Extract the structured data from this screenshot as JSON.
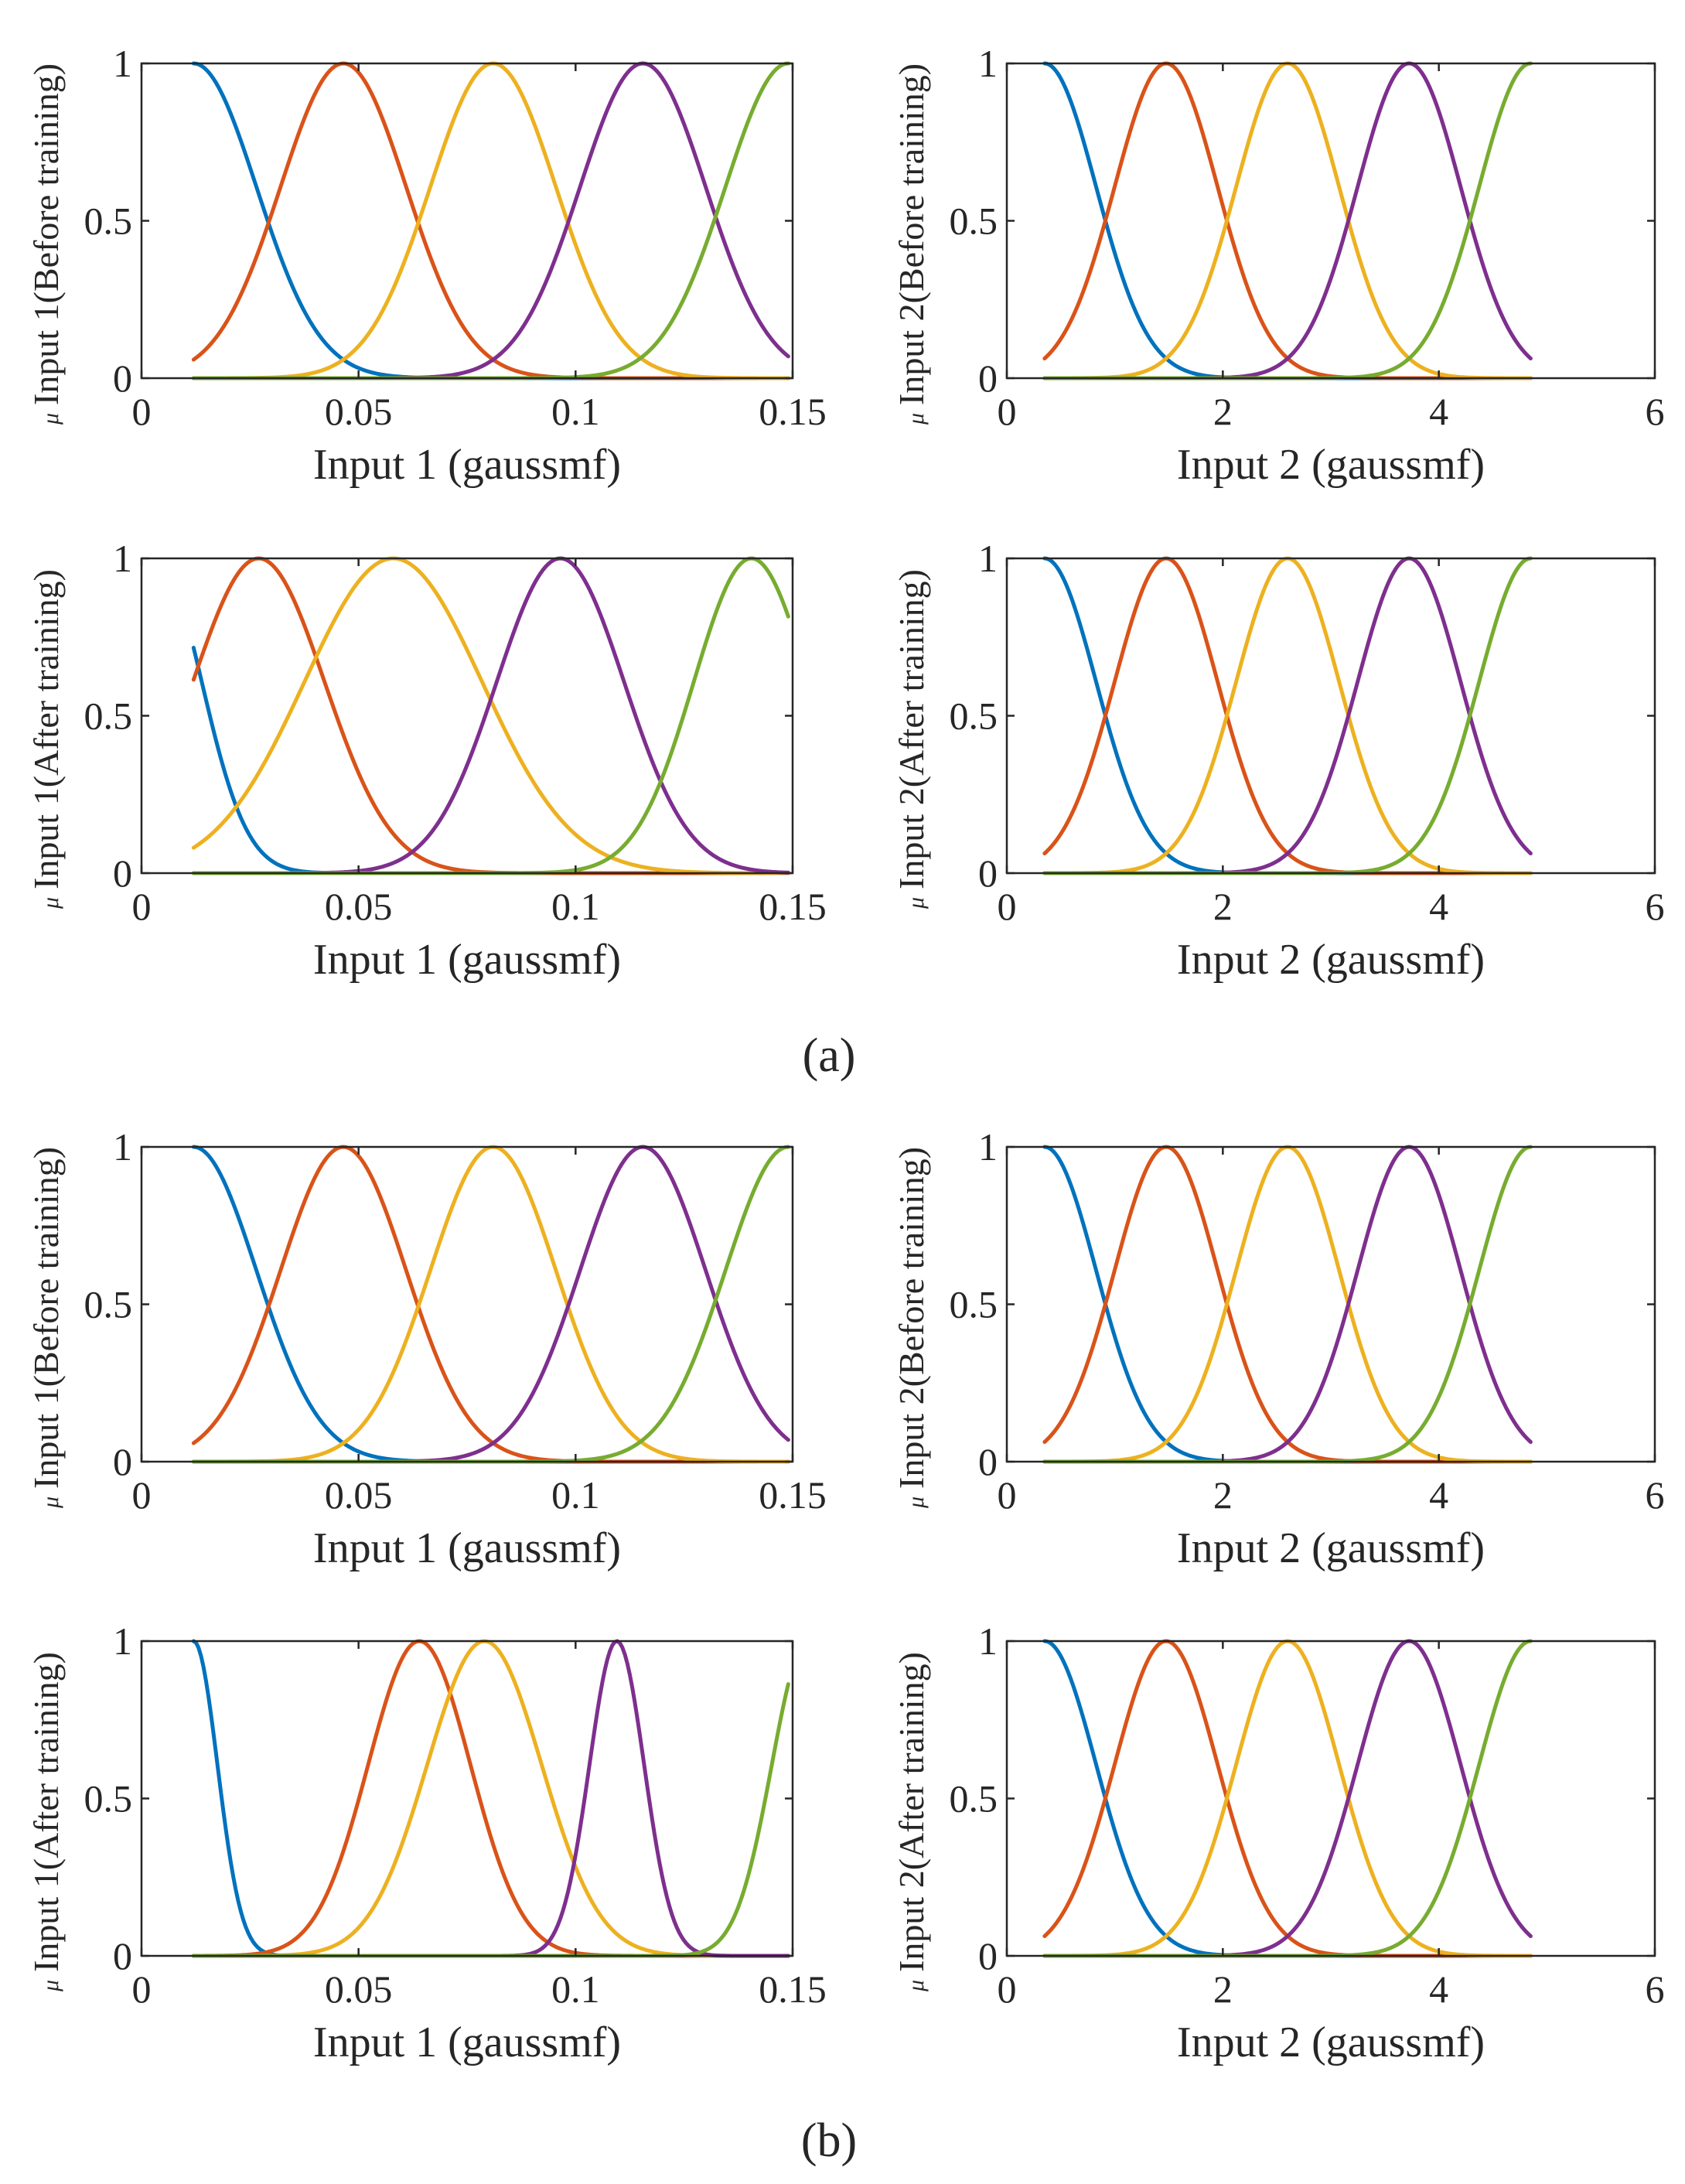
{
  "figure": {
    "panel_labels": [
      {
        "group": "a",
        "text": "(a)"
      },
      {
        "group": "b",
        "text": "(b)"
      }
    ]
  },
  "chart_data": [
    {
      "id": "a-input1-before",
      "type": "line",
      "xlabel": "Input 1 (gaussmf)",
      "ylabel_mu": "μ",
      "ylabel": "Input 1(Before training)",
      "xlim": [
        0,
        0.15
      ],
      "ylim": [
        0,
        1
      ],
      "xticks": [
        0,
        0.05,
        0.1,
        0.15
      ],
      "xtick_labels": [
        "0",
        "0.05",
        "0.1",
        "0.15"
      ],
      "yticks": [
        0,
        0.5,
        1
      ],
      "ytick_labels": [
        "0",
        "0.5",
        "1"
      ],
      "domain": [
        0.012,
        0.149
      ],
      "series": [
        {
          "name": "mf1",
          "color": "#0072BD",
          "center": 0.012,
          "sigma": 0.0145
        },
        {
          "name": "mf2",
          "color": "#D95319",
          "center": 0.0465,
          "sigma": 0.0145
        },
        {
          "name": "mf3",
          "color": "#EDB120",
          "center": 0.081,
          "sigma": 0.0145
        },
        {
          "name": "mf4",
          "color": "#7E2F8E",
          "center": 0.1155,
          "sigma": 0.0145
        },
        {
          "name": "mf5",
          "color": "#77AC30",
          "center": 0.149,
          "sigma": 0.0145
        }
      ]
    },
    {
      "id": "a-input2-before",
      "type": "line",
      "xlabel": "Input 2 (gaussmf)",
      "ylabel_mu": "μ",
      "ylabel": "Input 2(Before training)",
      "xlim": [
        0,
        6
      ],
      "ylim": [
        0,
        1
      ],
      "xticks": [
        0,
        2,
        4,
        6
      ],
      "xtick_labels": [
        "0",
        "2",
        "4",
        "6"
      ],
      "yticks": [
        0,
        0.5,
        1
      ],
      "ytick_labels": [
        "0",
        "0.5",
        "1"
      ],
      "domain": [
        0.35,
        4.85
      ],
      "series": [
        {
          "name": "mf1",
          "color": "#0072BD",
          "center": 0.35,
          "sigma": 0.478
        },
        {
          "name": "mf2",
          "color": "#D95319",
          "center": 1.475,
          "sigma": 0.478
        },
        {
          "name": "mf3",
          "color": "#EDB120",
          "center": 2.6,
          "sigma": 0.478
        },
        {
          "name": "mf4",
          "color": "#7E2F8E",
          "center": 3.725,
          "sigma": 0.478
        },
        {
          "name": "mf5",
          "color": "#77AC30",
          "center": 4.85,
          "sigma": 0.478
        }
      ]
    },
    {
      "id": "a-input1-after",
      "type": "line",
      "xlabel": "Input 1 (gaussmf)",
      "ylabel_mu": "μ",
      "ylabel": "Input 1(After  training)",
      "xlim": [
        0,
        0.15
      ],
      "ylim": [
        0,
        1
      ],
      "xticks": [
        0,
        0.05,
        0.1,
        0.15
      ],
      "xtick_labels": [
        "0",
        "0.05",
        "0.1",
        "0.15"
      ],
      "yticks": [
        0,
        0.5,
        1
      ],
      "ytick_labels": [
        "0",
        "0.5",
        "1"
      ],
      "domain": [
        0.012,
        0.149
      ],
      "series": [
        {
          "name": "mf1",
          "color": "#0072BD",
          "center": 0.0035,
          "sigma": 0.0104
        },
        {
          "name": "mf2",
          "color": "#D95319",
          "center": 0.027,
          "sigma": 0.0152
        },
        {
          "name": "mf3",
          "color": "#EDB120",
          "center": 0.058,
          "sigma": 0.0205
        },
        {
          "name": "mf4",
          "color": "#7E2F8E",
          "center": 0.0965,
          "sigma": 0.0147
        },
        {
          "name": "mf5",
          "color": "#77AC30",
          "center": 0.1405,
          "sigma": 0.0133
        }
      ]
    },
    {
      "id": "a-input2-after",
      "type": "line",
      "xlabel": "Input 2 (gaussmf)",
      "ylabel_mu": "μ",
      "ylabel": "Input 2(After training)",
      "xlim": [
        0,
        6
      ],
      "ylim": [
        0,
        1
      ],
      "xticks": [
        0,
        2,
        4,
        6
      ],
      "xtick_labels": [
        "0",
        "2",
        "4",
        "6"
      ],
      "yticks": [
        0,
        0.5,
        1
      ],
      "ytick_labels": [
        "0",
        "0.5",
        "1"
      ],
      "domain": [
        0.35,
        4.85
      ],
      "series": [
        {
          "name": "mf1",
          "color": "#0072BD",
          "center": 0.35,
          "sigma": 0.478
        },
        {
          "name": "mf2",
          "color": "#D95319",
          "center": 1.475,
          "sigma": 0.478
        },
        {
          "name": "mf3",
          "color": "#EDB120",
          "center": 2.6,
          "sigma": 0.478
        },
        {
          "name": "mf4",
          "color": "#7E2F8E",
          "center": 3.725,
          "sigma": 0.478
        },
        {
          "name": "mf5",
          "color": "#77AC30",
          "center": 4.85,
          "sigma": 0.478
        }
      ]
    },
    {
      "id": "b-input1-before",
      "type": "line",
      "xlabel": "Input 1 (gaussmf)",
      "ylabel_mu": "μ",
      "ylabel": "Input 1(Before training)",
      "xlim": [
        0,
        0.15
      ],
      "ylim": [
        0,
        1
      ],
      "xticks": [
        0,
        0.05,
        0.1,
        0.15
      ],
      "xtick_labels": [
        "0",
        "0.05",
        "0.1",
        "0.15"
      ],
      "yticks": [
        0,
        0.5,
        1
      ],
      "ytick_labels": [
        "0",
        "0.5",
        "1"
      ],
      "domain": [
        0.012,
        0.149
      ],
      "series": [
        {
          "name": "mf1",
          "color": "#0072BD",
          "center": 0.012,
          "sigma": 0.0145
        },
        {
          "name": "mf2",
          "color": "#D95319",
          "center": 0.0465,
          "sigma": 0.0145
        },
        {
          "name": "mf3",
          "color": "#EDB120",
          "center": 0.081,
          "sigma": 0.0145
        },
        {
          "name": "mf4",
          "color": "#7E2F8E",
          "center": 0.1155,
          "sigma": 0.0145
        },
        {
          "name": "mf5",
          "color": "#77AC30",
          "center": 0.149,
          "sigma": 0.0145
        }
      ]
    },
    {
      "id": "b-input2-before",
      "type": "line",
      "xlabel": "Input 2 (gaussmf)",
      "ylabel_mu": "μ",
      "ylabel": "Input 2(Before training)",
      "xlim": [
        0,
        6
      ],
      "ylim": [
        0,
        1
      ],
      "xticks": [
        0,
        2,
        4,
        6
      ],
      "xtick_labels": [
        "0",
        "2",
        "4",
        "6"
      ],
      "yticks": [
        0,
        0.5,
        1
      ],
      "ytick_labels": [
        "0",
        "0.5",
        "1"
      ],
      "domain": [
        0.35,
        4.85
      ],
      "series": [
        {
          "name": "mf1",
          "color": "#0072BD",
          "center": 0.35,
          "sigma": 0.478
        },
        {
          "name": "mf2",
          "color": "#D95319",
          "center": 1.475,
          "sigma": 0.478
        },
        {
          "name": "mf3",
          "color": "#EDB120",
          "center": 2.6,
          "sigma": 0.478
        },
        {
          "name": "mf4",
          "color": "#7E2F8E",
          "center": 3.725,
          "sigma": 0.478
        },
        {
          "name": "mf5",
          "color": "#77AC30",
          "center": 4.85,
          "sigma": 0.478
        }
      ]
    },
    {
      "id": "b-input1-after",
      "type": "line",
      "xlabel": "Input 1 (gaussmf)",
      "ylabel_mu": "μ",
      "ylabel": "Input 1(After training)",
      "xlim": [
        0,
        0.15
      ],
      "ylim": [
        0,
        1
      ],
      "xticks": [
        0,
        0.05,
        0.1,
        0.15
      ],
      "xtick_labels": [
        "0",
        "0.05",
        "0.1",
        "0.15"
      ],
      "yticks": [
        0,
        0.5,
        1
      ],
      "ytick_labels": [
        "0",
        "0.5",
        "1"
      ],
      "domain": [
        0.012,
        0.149
      ],
      "series": [
        {
          "name": "mf1",
          "color": "#0072BD",
          "center": 0.012,
          "sigma": 0.0055
        },
        {
          "name": "mf2",
          "color": "#D95319",
          "center": 0.064,
          "sigma": 0.0118
        },
        {
          "name": "mf3",
          "color": "#EDB120",
          "center": 0.079,
          "sigma": 0.0132
        },
        {
          "name": "mf4",
          "color": "#7E2F8E",
          "center": 0.1095,
          "sigma": 0.0063
        },
        {
          "name": "mf5",
          "color": "#77AC30",
          "center": 0.1535,
          "sigma": 0.0083
        }
      ]
    },
    {
      "id": "b-input2-after",
      "type": "line",
      "xlabel": "Input 2 (gaussmf)",
      "ylabel_mu": "μ",
      "ylabel": "Input 2(After training)",
      "xlim": [
        0,
        6
      ],
      "ylim": [
        0,
        1
      ],
      "xticks": [
        0,
        2,
        4,
        6
      ],
      "xtick_labels": [
        "0",
        "2",
        "4",
        "6"
      ],
      "yticks": [
        0,
        0.5,
        1
      ],
      "ytick_labels": [
        "0",
        "0.5",
        "1"
      ],
      "domain": [
        0.35,
        4.85
      ],
      "series": [
        {
          "name": "mf1",
          "color": "#0072BD",
          "center": 0.35,
          "sigma": 0.478
        },
        {
          "name": "mf2",
          "color": "#D95319",
          "center": 1.475,
          "sigma": 0.478
        },
        {
          "name": "mf3",
          "color": "#EDB120",
          "center": 2.6,
          "sigma": 0.478
        },
        {
          "name": "mf4",
          "color": "#7E2F8E",
          "center": 3.725,
          "sigma": 0.478
        },
        {
          "name": "mf5",
          "color": "#77AC30",
          "center": 4.85,
          "sigma": 0.478
        }
      ]
    }
  ]
}
